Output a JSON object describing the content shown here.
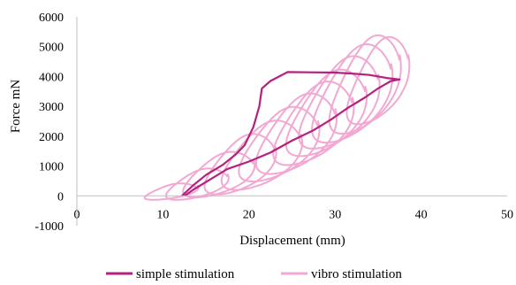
{
  "chart_data": {
    "type": "line",
    "xlabel": "Displacement (mm)",
    "ylabel": "Force mN",
    "xlim": [
      0,
      50
    ],
    "ylim": [
      -1000,
      6000
    ],
    "x_ticks": [
      0,
      10,
      20,
      30,
      40,
      50
    ],
    "y_ticks": [
      -1000,
      0,
      1000,
      2000,
      3000,
      4000,
      5000,
      6000
    ],
    "grid": false,
    "legend_position": "bottom",
    "colors": {
      "simple": "#b5217e",
      "vibro": "#f2a8d2"
    },
    "series": [
      {
        "name": "simple stimulation",
        "color": "#b5217e",
        "points": [
          [
            12.2,
            0
          ],
          [
            13.5,
            350
          ],
          [
            15,
            700
          ],
          [
            17,
            1050
          ],
          [
            18.5,
            1400
          ],
          [
            19.5,
            1700
          ],
          [
            20.5,
            2300
          ],
          [
            21.2,
            3000
          ],
          [
            21.5,
            3600
          ],
          [
            22.5,
            3850
          ],
          [
            24.5,
            4150
          ],
          [
            27,
            4140
          ],
          [
            30,
            4130
          ],
          [
            32,
            4100
          ],
          [
            34,
            4050
          ],
          [
            36,
            3950
          ],
          [
            37.5,
            3900
          ],
          [
            36.5,
            3850
          ],
          [
            35,
            3600
          ],
          [
            33.5,
            3300
          ],
          [
            31.5,
            2950
          ],
          [
            29.5,
            2550
          ],
          [
            27.5,
            2200
          ],
          [
            25,
            1850
          ],
          [
            22.5,
            1450
          ],
          [
            20,
            1150
          ],
          [
            17.5,
            900
          ],
          [
            15.5,
            550
          ],
          [
            13.5,
            200
          ],
          [
            12.5,
            0
          ]
        ]
      },
      {
        "name": "vibro stimulation",
        "color": "#f2a8d2",
        "loops": [
          {
            "cx": 11,
            "cy": 100,
            "rx": 3,
            "ry": 300,
            "drift": 100
          },
          {
            "cx": 14,
            "cy": 350,
            "rx": 3.5,
            "ry": 550,
            "drift": 100
          },
          {
            "cx": 16.5,
            "cy": 650,
            "rx": 4,
            "ry": 800,
            "drift": 150
          },
          {
            "cx": 19,
            "cy": 1000,
            "rx": 4,
            "ry": 1050,
            "drift": 150
          },
          {
            "cx": 21.5,
            "cy": 1300,
            "rx": 4.5,
            "ry": 1200,
            "drift": 150
          },
          {
            "cx": 23.5,
            "cy": 1650,
            "rx": 4.5,
            "ry": 1300,
            "drift": 200
          },
          {
            "cx": 25.5,
            "cy": 2000,
            "rx": 4.5,
            "ry": 1400,
            "drift": 200
          },
          {
            "cx": 27.5,
            "cy": 2350,
            "rx": 4.5,
            "ry": 1450,
            "drift": 200
          },
          {
            "cx": 29,
            "cy": 2700,
            "rx": 4.5,
            "ry": 1500,
            "drift": 200
          },
          {
            "cx": 30.5,
            "cy": 3050,
            "rx": 4.5,
            "ry": 1600,
            "drift": 200
          },
          {
            "cx": 32,
            "cy": 3350,
            "rx": 4.5,
            "ry": 1700,
            "drift": 200
          },
          {
            "cx": 33.5,
            "cy": 3650,
            "rx": 4,
            "ry": 1700,
            "drift": 200
          },
          {
            "cx": 35,
            "cy": 3800,
            "rx": 3.5,
            "ry": 1500,
            "drift": 150
          }
        ]
      }
    ]
  }
}
